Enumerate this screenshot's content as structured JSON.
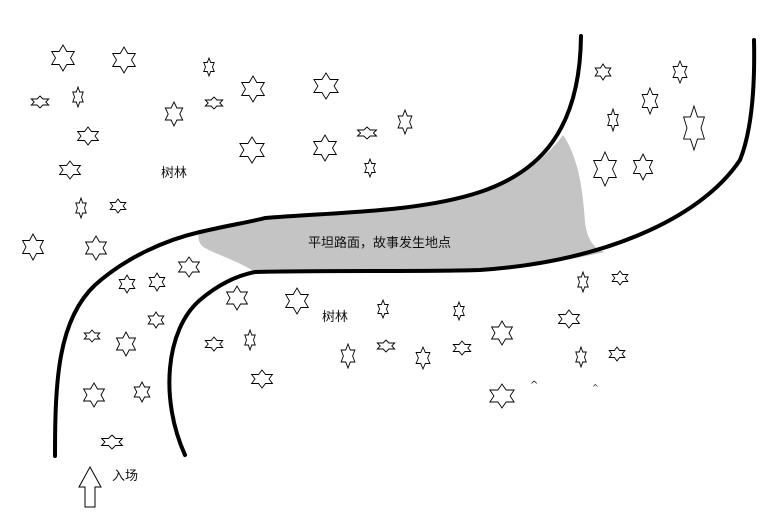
{
  "labels": {
    "forest_top": "树林",
    "forest_bottom": "树林",
    "paved_area": "平坦路面，故事发生地点",
    "entrance": "入场"
  },
  "icons": {
    "tree": "star-tree-icon",
    "entrance_arrow": "up-arrow-icon"
  },
  "colors": {
    "road_line": "#000000",
    "paved_fill": "#c4c4c4",
    "background": "#ffffff"
  }
}
